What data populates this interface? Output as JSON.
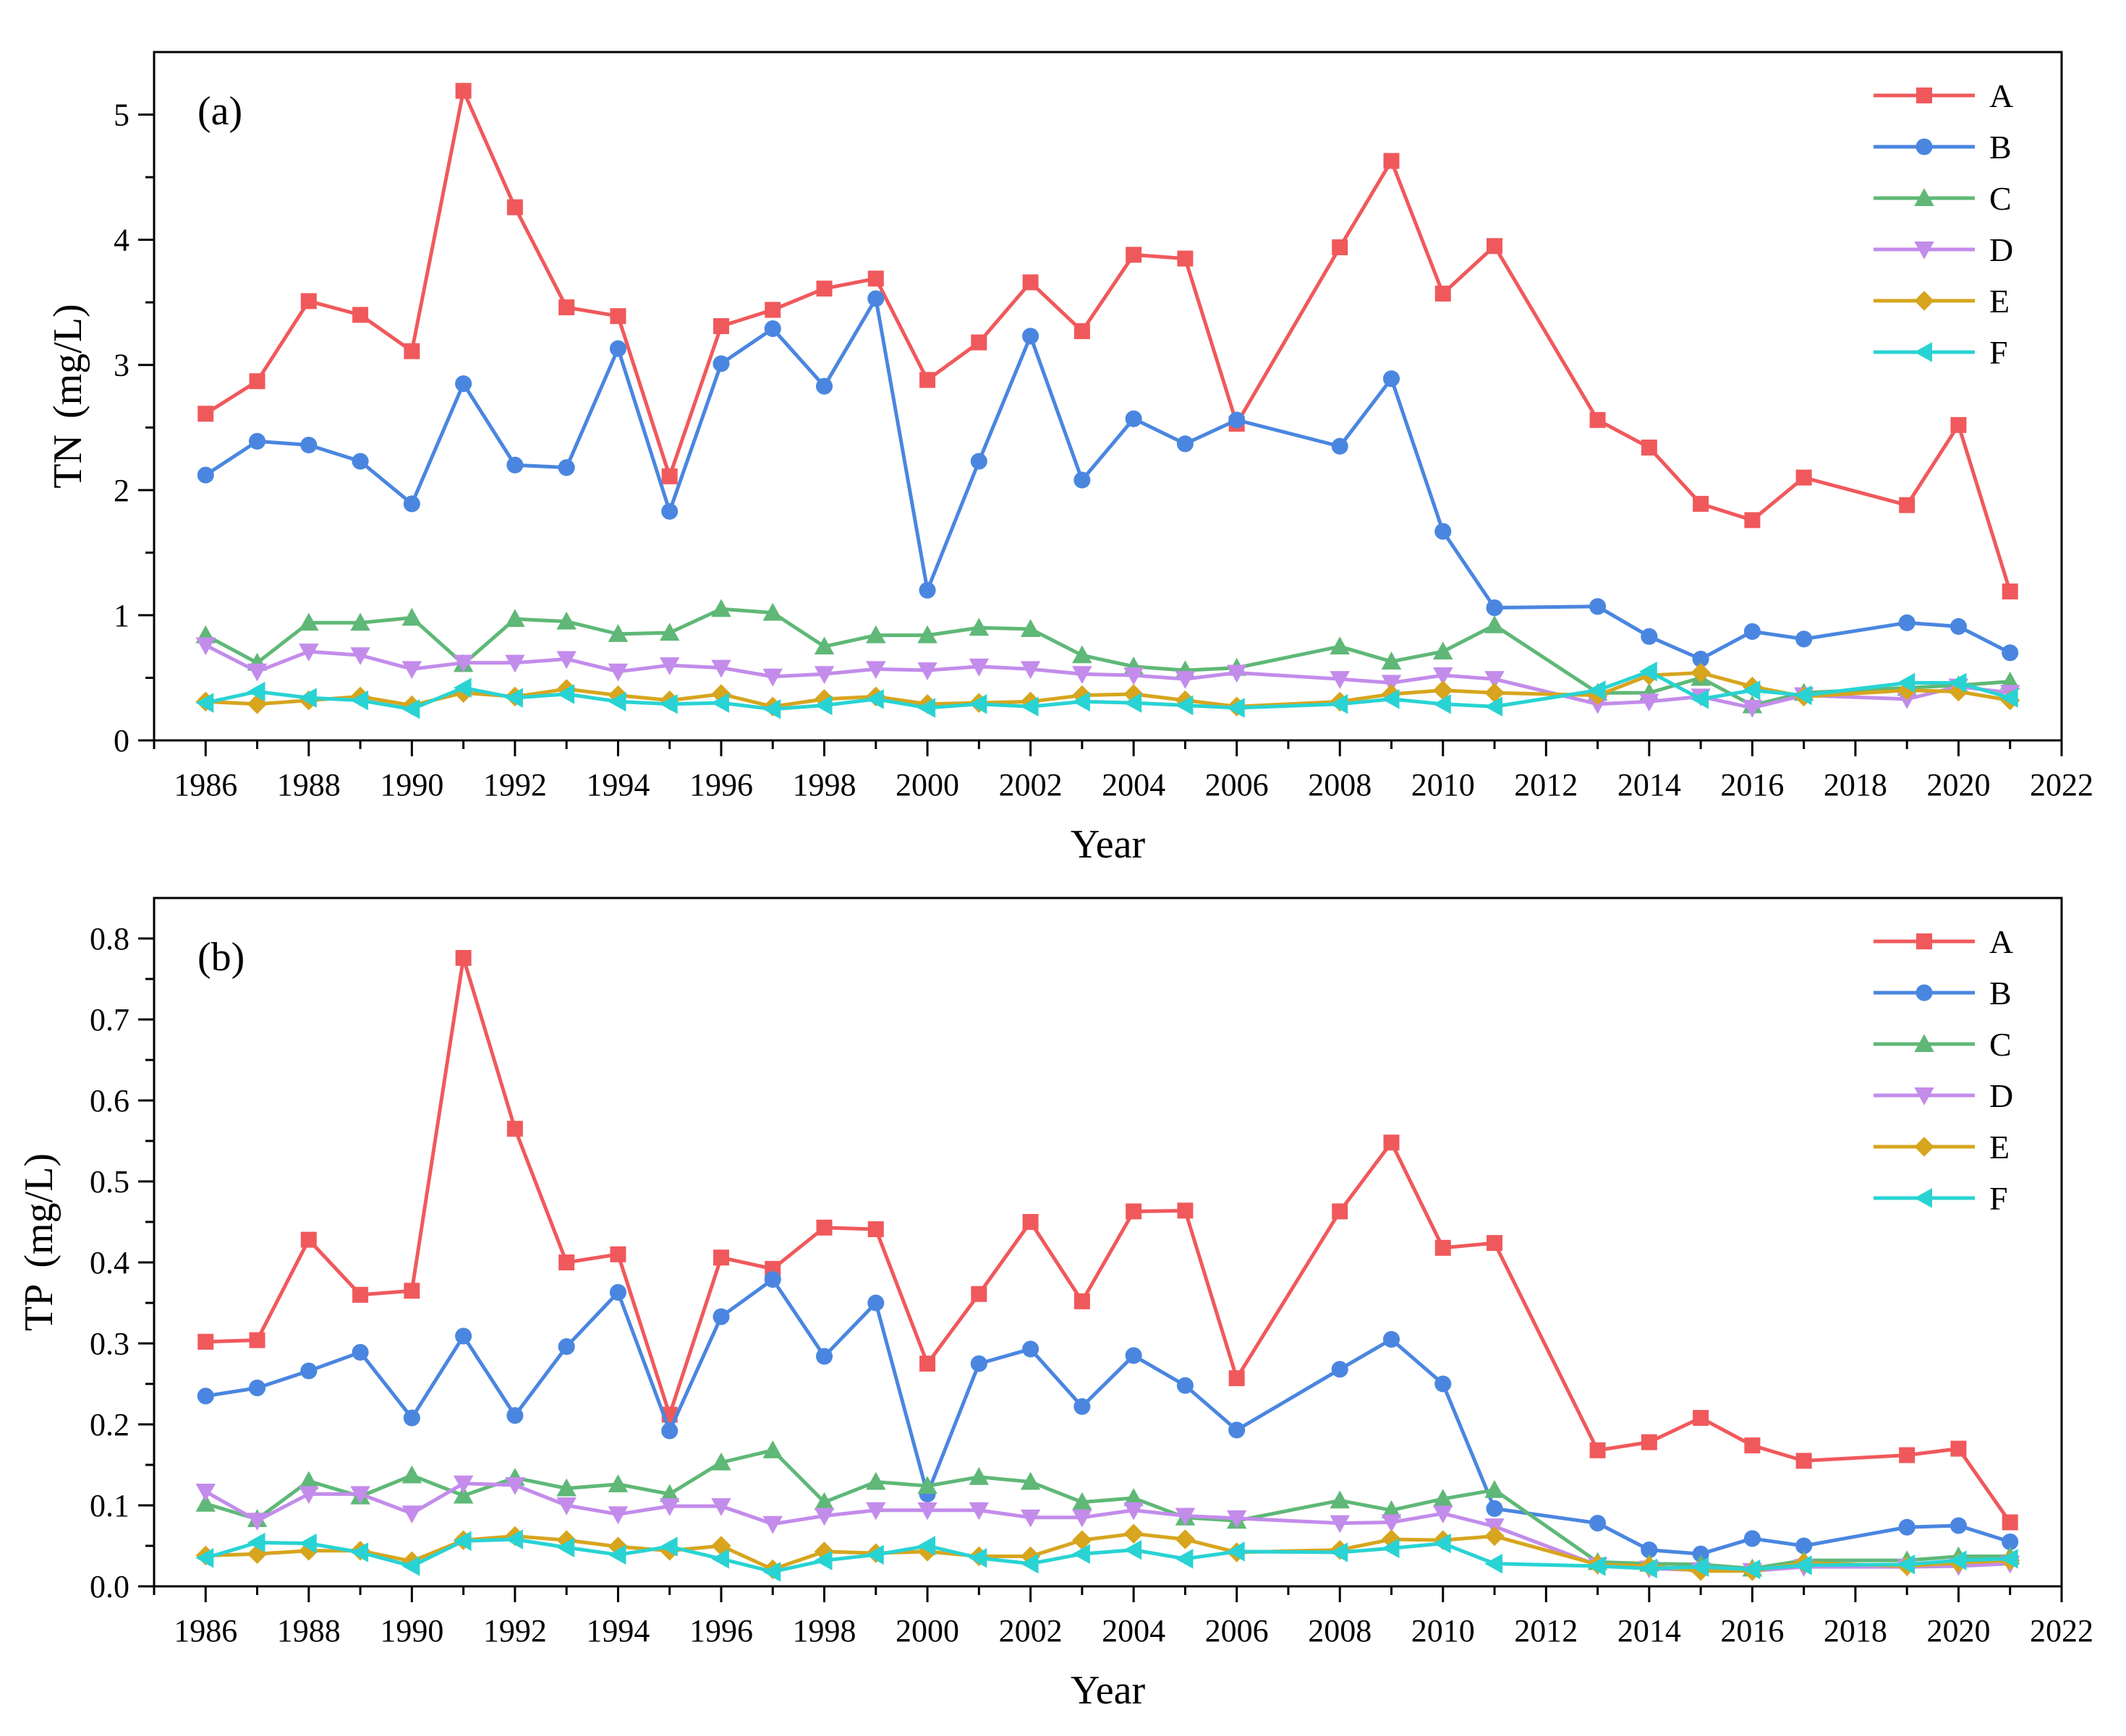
{
  "colors": {
    "A": "#F0595C",
    "B": "#4A86E0",
    "C": "#5FB877",
    "D": "#C38CEB",
    "E": "#D7A51E",
    "F": "#29D3D3",
    "axis": "#000000"
  },
  "legend": [
    "A",
    "B",
    "C",
    "D",
    "E",
    "F"
  ],
  "chart_data": [
    {
      "type": "line",
      "panel_label": "(a)",
      "title": "",
      "xlabel": "Year",
      "ylabel_main": "TN",
      "ylabel_unit": "(mg/L)",
      "xlim": [
        1985,
        2022
      ],
      "ylim": [
        0,
        5.5
      ],
      "x_ticks": [
        "1986",
        "1988",
        "1990",
        "1992",
        "1994",
        "1996",
        "1998",
        "2000",
        "2002",
        "2004",
        "2006",
        "2008",
        "2010",
        "2012",
        "2014",
        "2016",
        "2018",
        "2020",
        "2022"
      ],
      "y_ticks": [
        "0",
        "1",
        "2",
        "3",
        "4",
        "5"
      ],
      "legend_position": "top-right",
      "series": [
        {
          "name": "A",
          "marker": "square",
          "x": [
            1986,
            1987,
            1988,
            1989,
            1990,
            1991,
            1992,
            1993,
            1994,
            1995,
            1996,
            1997,
            1998,
            1999,
            2000,
            2001,
            2002,
            2003,
            2004,
            2005,
            2006,
            2008,
            2009,
            2010,
            2011,
            2013,
            2014,
            2015,
            2016,
            2017,
            2019,
            2020,
            2021
          ],
          "values": [
            2.61,
            2.87,
            3.51,
            3.4,
            3.11,
            5.19,
            4.26,
            3.46,
            3.39,
            2.11,
            3.31,
            3.44,
            3.61,
            3.69,
            2.88,
            3.18,
            3.66,
            3.27,
            3.88,
            3.85,
            2.53,
            3.94,
            4.63,
            3.57,
            3.95,
            2.56,
            2.34,
            1.89,
            1.76,
            2.1,
            1.88,
            2.52,
            1.19
          ]
        },
        {
          "name": "B",
          "marker": "circle",
          "x": [
            1986,
            1987,
            1988,
            1989,
            1990,
            1991,
            1992,
            1993,
            1994,
            1995,
            1996,
            1997,
            1998,
            1999,
            2000,
            2001,
            2002,
            2003,
            2004,
            2005,
            2006,
            2008,
            2009,
            2010,
            2011,
            2013,
            2014,
            2015,
            2016,
            2017,
            2019,
            2020,
            2021
          ],
          "values": [
            2.12,
            2.39,
            2.36,
            2.23,
            1.89,
            2.85,
            2.2,
            2.18,
            3.13,
            1.83,
            3.01,
            3.29,
            2.83,
            3.53,
            1.2,
            2.23,
            3.23,
            2.08,
            2.57,
            2.37,
            2.56,
            2.35,
            2.89,
            1.67,
            1.06,
            1.07,
            0.83,
            0.65,
            0.87,
            0.81,
            0.94,
            0.91,
            0.7
          ]
        },
        {
          "name": "C",
          "marker": "triangle-up",
          "x": [
            1986,
            1987,
            1988,
            1989,
            1990,
            1991,
            1992,
            1993,
            1994,
            1995,
            1996,
            1997,
            1998,
            1999,
            2000,
            2001,
            2002,
            2003,
            2004,
            2005,
            2006,
            2008,
            2009,
            2010,
            2011,
            2013,
            2014,
            2015,
            2016,
            2017,
            2019,
            2020,
            2021
          ],
          "values": [
            0.84,
            0.62,
            0.94,
            0.94,
            0.98,
            0.61,
            0.97,
            0.95,
            0.85,
            0.86,
            1.05,
            1.02,
            0.75,
            0.84,
            0.84,
            0.9,
            0.89,
            0.68,
            0.59,
            0.56,
            0.58,
            0.75,
            0.63,
            0.71,
            0.92,
            0.38,
            0.38,
            0.5,
            0.28,
            0.38,
            0.42,
            0.44,
            0.47
          ]
        },
        {
          "name": "D",
          "marker": "triangle-down",
          "x": [
            1986,
            1987,
            1988,
            1989,
            1990,
            1991,
            1992,
            1993,
            1994,
            1995,
            1996,
            1997,
            1998,
            1999,
            2000,
            2001,
            2002,
            2003,
            2004,
            2005,
            2006,
            2008,
            2009,
            2010,
            2011,
            2013,
            2014,
            2015,
            2016,
            2017,
            2019,
            2020,
            2021
          ],
          "values": [
            0.76,
            0.55,
            0.71,
            0.68,
            0.57,
            0.62,
            0.62,
            0.65,
            0.55,
            0.6,
            0.58,
            0.51,
            0.53,
            0.57,
            0.56,
            0.59,
            0.57,
            0.53,
            0.52,
            0.49,
            0.54,
            0.49,
            0.46,
            0.52,
            0.49,
            0.29,
            0.31,
            0.35,
            0.26,
            0.36,
            0.33,
            0.43,
            0.38
          ]
        },
        {
          "name": "E",
          "marker": "diamond",
          "x": [
            1986,
            1987,
            1988,
            1989,
            1990,
            1991,
            1992,
            1993,
            1994,
            1995,
            1996,
            1997,
            1998,
            1999,
            2000,
            2001,
            2002,
            2003,
            2004,
            2005,
            2006,
            2008,
            2009,
            2010,
            2011,
            2013,
            2014,
            2015,
            2016,
            2017,
            2019,
            2020,
            2021
          ],
          "values": [
            0.31,
            0.29,
            0.32,
            0.35,
            0.28,
            0.38,
            0.35,
            0.41,
            0.36,
            0.32,
            0.37,
            0.27,
            0.33,
            0.35,
            0.29,
            0.3,
            0.31,
            0.36,
            0.37,
            0.32,
            0.27,
            0.31,
            0.37,
            0.4,
            0.38,
            0.36,
            0.52,
            0.54,
            0.43,
            0.35,
            0.4,
            0.39,
            0.32
          ]
        },
        {
          "name": "F",
          "marker": "triangle-left",
          "x": [
            1986,
            1987,
            1988,
            1989,
            1990,
            1991,
            1992,
            1993,
            1994,
            1995,
            1996,
            1997,
            1998,
            1999,
            2000,
            2001,
            2002,
            2003,
            2004,
            2005,
            2006,
            2008,
            2009,
            2010,
            2011,
            2013,
            2014,
            2015,
            2016,
            2017,
            2019,
            2020,
            2021
          ],
          "values": [
            0.3,
            0.39,
            0.34,
            0.32,
            0.25,
            0.42,
            0.34,
            0.37,
            0.31,
            0.29,
            0.3,
            0.25,
            0.28,
            0.33,
            0.26,
            0.29,
            0.27,
            0.31,
            0.3,
            0.28,
            0.26,
            0.29,
            0.33,
            0.29,
            0.27,
            0.4,
            0.55,
            0.33,
            0.4,
            0.36,
            0.46,
            0.46,
            0.34
          ]
        }
      ]
    },
    {
      "type": "line",
      "panel_label": "(b)",
      "title": "",
      "xlabel": "Year",
      "ylabel_main": "TP",
      "ylabel_unit": "(mg/L)",
      "xlim": [
        1985,
        2022
      ],
      "ylim": [
        0,
        0.85
      ],
      "x_ticks": [
        "1986",
        "1988",
        "1990",
        "1992",
        "1994",
        "1996",
        "1998",
        "2000",
        "2002",
        "2004",
        "2006",
        "2008",
        "2010",
        "2012",
        "2014",
        "2016",
        "2018",
        "2020",
        "2022"
      ],
      "y_ticks": [
        "0.0",
        "0.1",
        "0.2",
        "0.3",
        "0.4",
        "0.5",
        "0.6",
        "0.7",
        "0.8"
      ],
      "legend_position": "top-right",
      "series": [
        {
          "name": "A",
          "marker": "square",
          "x": [
            1986,
            1987,
            1988,
            1989,
            1990,
            1991,
            1992,
            1993,
            1994,
            1995,
            1996,
            1997,
            1998,
            1999,
            2000,
            2001,
            2002,
            2003,
            2004,
            2005,
            2006,
            2008,
            2009,
            2010,
            2011,
            2013,
            2014,
            2015,
            2016,
            2017,
            2019,
            2020,
            2021
          ],
          "values": [
            0.302,
            0.304,
            0.428,
            0.36,
            0.365,
            0.776,
            0.565,
            0.4,
            0.41,
            0.212,
            0.406,
            0.392,
            0.443,
            0.441,
            0.275,
            0.361,
            0.45,
            0.352,
            0.463,
            0.464,
            0.257,
            0.463,
            0.548,
            0.418,
            0.424,
            0.168,
            0.178,
            0.208,
            0.174,
            0.155,
            0.162,
            0.17,
            0.079
          ]
        },
        {
          "name": "B",
          "marker": "circle",
          "x": [
            1986,
            1987,
            1988,
            1989,
            1990,
            1991,
            1992,
            1993,
            1994,
            1995,
            1996,
            1997,
            1998,
            1999,
            2000,
            2001,
            2002,
            2003,
            2004,
            2005,
            2006,
            2008,
            2009,
            2010,
            2011,
            2013,
            2014,
            2015,
            2016,
            2017,
            2019,
            2020,
            2021
          ],
          "values": [
            0.235,
            0.245,
            0.266,
            0.289,
            0.208,
            0.309,
            0.211,
            0.296,
            0.363,
            0.192,
            0.333,
            0.379,
            0.284,
            0.35,
            0.114,
            0.275,
            0.293,
            0.222,
            0.285,
            0.248,
            0.193,
            0.268,
            0.305,
            0.25,
            0.096,
            0.078,
            0.045,
            0.04,
            0.059,
            0.05,
            0.073,
            0.075,
            0.055
          ]
        },
        {
          "name": "C",
          "marker": "triangle-up",
          "x": [
            1986,
            1987,
            1988,
            1989,
            1990,
            1991,
            1992,
            1993,
            1994,
            1995,
            1996,
            1997,
            1998,
            1999,
            2000,
            2001,
            2002,
            2003,
            2004,
            2005,
            2006,
            2008,
            2009,
            2010,
            2011,
            2013,
            2014,
            2015,
            2016,
            2017,
            2019,
            2020,
            2021
          ],
          "values": [
            0.102,
            0.083,
            0.13,
            0.111,
            0.137,
            0.112,
            0.134,
            0.121,
            0.126,
            0.114,
            0.153,
            0.168,
            0.104,
            0.129,
            0.124,
            0.135,
            0.129,
            0.104,
            0.109,
            0.085,
            0.081,
            0.106,
            0.094,
            0.108,
            0.119,
            0.03,
            0.028,
            0.027,
            0.022,
            0.032,
            0.032,
            0.037,
            0.037
          ]
        },
        {
          "name": "D",
          "marker": "triangle-down",
          "x": [
            1986,
            1987,
            1988,
            1989,
            1990,
            1991,
            1992,
            1993,
            1994,
            1995,
            1996,
            1997,
            1998,
            1999,
            2000,
            2001,
            2002,
            2003,
            2004,
            2005,
            2006,
            2008,
            2009,
            2010,
            2011,
            2013,
            2014,
            2015,
            2016,
            2017,
            2019,
            2020,
            2021
          ],
          "values": [
            0.117,
            0.081,
            0.114,
            0.114,
            0.09,
            0.127,
            0.125,
            0.1,
            0.089,
            0.099,
            0.099,
            0.077,
            0.087,
            0.094,
            0.094,
            0.094,
            0.085,
            0.085,
            0.094,
            0.087,
            0.084,
            0.078,
            0.079,
            0.09,
            0.074,
            0.026,
            0.022,
            0.02,
            0.019,
            0.024,
            0.024,
            0.025,
            0.028
          ]
        },
        {
          "name": "E",
          "marker": "diamond",
          "x": [
            1986,
            1987,
            1988,
            1989,
            1990,
            1991,
            1992,
            1993,
            1994,
            1995,
            1996,
            1997,
            1998,
            1999,
            2000,
            2001,
            2002,
            2003,
            2004,
            2005,
            2006,
            2008,
            2009,
            2010,
            2011,
            2013,
            2014,
            2015,
            2016,
            2017,
            2019,
            2020,
            2021
          ],
          "values": [
            0.038,
            0.04,
            0.044,
            0.044,
            0.031,
            0.057,
            0.062,
            0.057,
            0.049,
            0.044,
            0.05,
            0.021,
            0.043,
            0.041,
            0.043,
            0.037,
            0.037,
            0.057,
            0.065,
            0.058,
            0.042,
            0.045,
            0.058,
            0.057,
            0.062,
            0.027,
            0.025,
            0.019,
            0.019,
            0.029,
            0.025,
            0.029,
            0.032
          ]
        },
        {
          "name": "F",
          "marker": "triangle-left",
          "x": [
            1986,
            1987,
            1988,
            1989,
            1990,
            1991,
            1992,
            1993,
            1994,
            1995,
            1996,
            1997,
            1998,
            1999,
            2000,
            2001,
            2002,
            2003,
            2004,
            2005,
            2006,
            2008,
            2009,
            2010,
            2011,
            2013,
            2014,
            2015,
            2016,
            2017,
            2019,
            2020,
            2021
          ],
          "values": [
            0.035,
            0.054,
            0.053,
            0.042,
            0.025,
            0.056,
            0.058,
            0.048,
            0.039,
            0.049,
            0.034,
            0.018,
            0.032,
            0.039,
            0.05,
            0.035,
            0.028,
            0.04,
            0.045,
            0.034,
            0.043,
            0.042,
            0.047,
            0.053,
            0.028,
            0.025,
            0.022,
            0.024,
            0.021,
            0.026,
            0.027,
            0.032,
            0.034
          ]
        }
      ]
    }
  ]
}
